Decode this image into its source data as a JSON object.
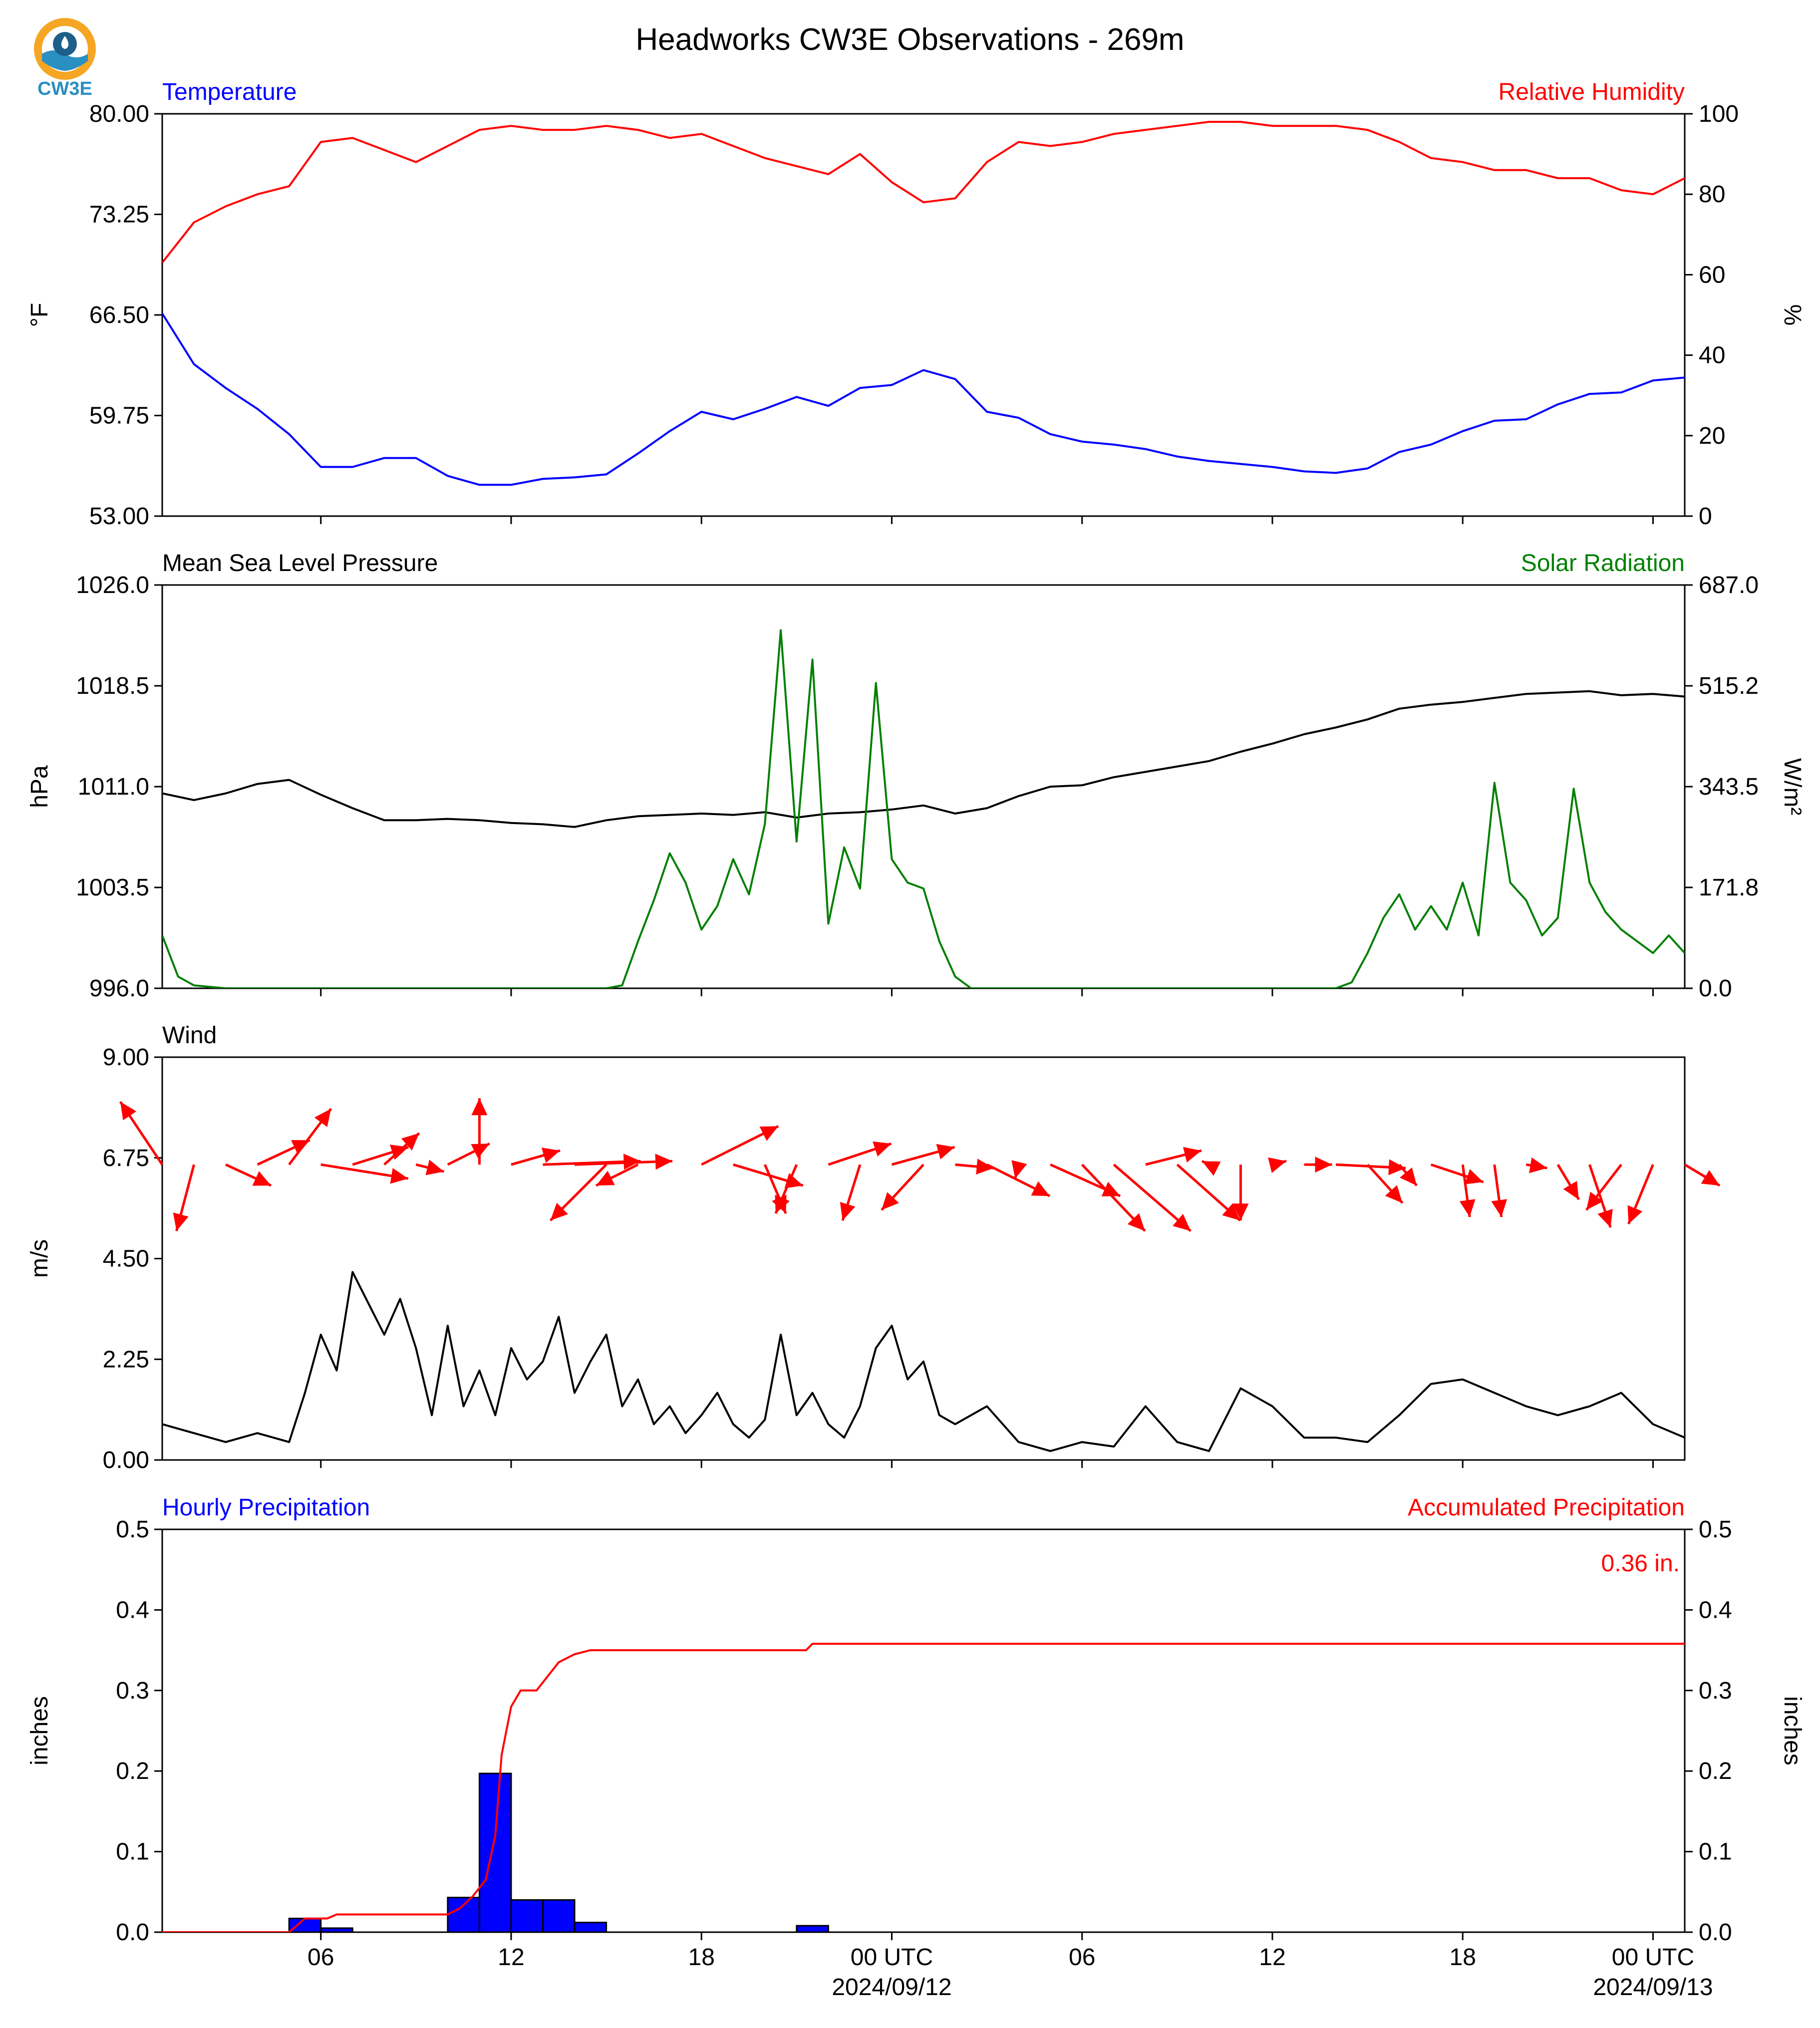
{
  "title": "Headworks CW3E Observations - 269m",
  "logo": {
    "text": "CW3E",
    "colors": [
      "#f5a623",
      "#2a8fc1",
      "#1e5f8a"
    ]
  },
  "colors": {
    "temperature": "#0000ff",
    "humidity": "#ff0000",
    "pressure": "#000000",
    "solar": "#008000",
    "wind_speed": "#000000",
    "wind_arrow": "#ff0000",
    "hourly_bar": "#0000ff",
    "accum_line": "#ff0000"
  },
  "time_axis": {
    "start": "2024-09-11T01:00Z",
    "end": "2024-09-13T01:00Z",
    "tick_labels": [
      "06",
      "12",
      "18",
      "00 UTC",
      "06",
      "12",
      "18",
      "00 UTC"
    ],
    "tick_hours": [
      6,
      12,
      18,
      24,
      30,
      36,
      42,
      48
    ],
    "date_labels": [
      "2024/09/12",
      "2024/09/13"
    ]
  },
  "chart_data": [
    {
      "type": "line",
      "panel": "temperature_humidity",
      "left_label": "Temperature",
      "right_label": "Relative Humidity",
      "ylabel": "°F",
      "ylabel_right": "%",
      "ylim": [
        53.0,
        80.0
      ],
      "ylim_right": [
        0,
        100
      ],
      "yticks": [
        "53.00",
        "59.75",
        "66.50",
        "73.25",
        "80.00"
      ],
      "yticks_right": [
        "0",
        "20",
        "40",
        "60",
        "80",
        "100"
      ],
      "series": [
        {
          "name": "Temperature",
          "axis": "left",
          "x": [
            1,
            2,
            3,
            4,
            5,
            6,
            7,
            8,
            9,
            10,
            11,
            12,
            13,
            14,
            15,
            16,
            17,
            18,
            19,
            20,
            21,
            22,
            23,
            24,
            25,
            26,
            27,
            28,
            29,
            30,
            31,
            32,
            33,
            34,
            35,
            36,
            37,
            38,
            39,
            40,
            41,
            42,
            43,
            44,
            45,
            46,
            47,
            48,
            49
          ],
          "y": [
            66.6,
            63.2,
            61.6,
            60.2,
            58.5,
            56.3,
            56.3,
            56.9,
            56.9,
            55.7,
            55.1,
            55.1,
            55.5,
            55.6,
            55.8,
            57.2,
            58.7,
            60.0,
            59.5,
            60.2,
            61.0,
            60.4,
            61.6,
            61.8,
            62.8,
            62.2,
            60.0,
            59.6,
            58.5,
            58.0,
            57.8,
            57.5,
            57.0,
            56.7,
            56.5,
            56.3,
            56.0,
            55.9,
            56.2,
            57.3,
            57.8,
            58.7,
            59.4,
            59.5,
            60.5,
            61.2,
            61.3,
            62.1,
            62.3
          ]
        },
        {
          "name": "Relative Humidity",
          "axis": "right",
          "x": [
            1,
            2,
            3,
            4,
            5,
            6,
            7,
            8,
            9,
            10,
            11,
            12,
            13,
            14,
            15,
            16,
            17,
            18,
            19,
            20,
            21,
            22,
            23,
            24,
            25,
            26,
            27,
            28,
            29,
            30,
            31,
            32,
            33,
            34,
            35,
            36,
            37,
            38,
            39,
            40,
            41,
            42,
            43,
            44,
            45,
            46,
            47,
            48,
            49
          ],
          "y": [
            63,
            73,
            77,
            80,
            82,
            93,
            94,
            91,
            88,
            92,
            96,
            97,
            96,
            96,
            97,
            96,
            94,
            95,
            92,
            89,
            87,
            85,
            90,
            83,
            78,
            79,
            88,
            93,
            92,
            93,
            95,
            96,
            97,
            98,
            98,
            97,
            97,
            97,
            96,
            93,
            89,
            88,
            86,
            86,
            84,
            84,
            81,
            80,
            84
          ]
        }
      ]
    },
    {
      "type": "line",
      "panel": "pressure_solar",
      "left_label": "Mean Sea Level Pressure",
      "right_label": "Solar Radiation",
      "ylabel": "hPa",
      "ylabel_right": "W/m²",
      "ylim": [
        996.0,
        1026.0
      ],
      "ylim_right": [
        0.0,
        687.0
      ],
      "yticks": [
        "996.0",
        "1003.5",
        "1011.0",
        "1018.5",
        "1026.0"
      ],
      "yticks_right": [
        "0.0",
        "171.8",
        "343.5",
        "515.2",
        "687.0"
      ],
      "series": [
        {
          "name": "Mean Sea Level Pressure",
          "axis": "left",
          "x": [
            1,
            2,
            3,
            4,
            5,
            6,
            7,
            8,
            9,
            10,
            11,
            12,
            13,
            14,
            15,
            16,
            17,
            18,
            19,
            20,
            21,
            22,
            23,
            24,
            25,
            26,
            27,
            28,
            29,
            30,
            31,
            32,
            33,
            34,
            35,
            36,
            37,
            38,
            39,
            40,
            41,
            42,
            43,
            44,
            45,
            46,
            47,
            48,
            49
          ],
          "y": [
            1010.5,
            1010.0,
            1010.5,
            1011.2,
            1011.5,
            1010.4,
            1009.4,
            1008.5,
            1008.5,
            1008.6,
            1008.5,
            1008.3,
            1008.2,
            1008.0,
            1008.5,
            1008.8,
            1008.9,
            1009.0,
            1008.9,
            1009.1,
            1008.7,
            1009.0,
            1009.1,
            1009.3,
            1009.6,
            1009.0,
            1009.4,
            1010.3,
            1011.0,
            1011.1,
            1011.7,
            1012.1,
            1012.5,
            1012.9,
            1013.6,
            1014.2,
            1014.9,
            1015.4,
            1016.0,
            1016.8,
            1017.1,
            1017.3,
            1017.6,
            1017.9,
            1018.0,
            1018.1,
            1017.8,
            1017.9,
            1017.7
          ]
        },
        {
          "name": "Solar Radiation",
          "axis": "right",
          "x": [
            1,
            1.5,
            2,
            3,
            4,
            5,
            6,
            7,
            8,
            9,
            10,
            13,
            14,
            15,
            15.5,
            16,
            16.5,
            17,
            17.5,
            18,
            18.5,
            19,
            19.5,
            20,
            20.5,
            21,
            21.5,
            22,
            22.5,
            23,
            23.5,
            24,
            24.5,
            25,
            25.5,
            26,
            26.5,
            27,
            38,
            38.5,
            39,
            39.5,
            40,
            40.5,
            41,
            41.5,
            42,
            42.5,
            43,
            43.5,
            44,
            44.5,
            45,
            45.5,
            46,
            46.5,
            47,
            47.5,
            48,
            48.5,
            49
          ],
          "y": [
            90,
            20,
            5,
            0,
            0,
            0,
            0,
            0,
            0,
            0,
            0,
            0,
            0,
            0,
            5,
            80,
            150,
            230,
            180,
            100,
            140,
            220,
            160,
            280,
            610,
            250,
            560,
            110,
            240,
            170,
            520,
            220,
            180,
            170,
            80,
            20,
            0,
            0,
            0,
            10,
            60,
            120,
            160,
            100,
            140,
            100,
            180,
            90,
            350,
            180,
            150,
            90,
            120,
            340,
            180,
            130,
            100,
            80,
            60,
            90,
            60
          ]
        }
      ]
    },
    {
      "type": "line",
      "panel": "wind",
      "left_label": "Wind",
      "ylabel": "m/s",
      "ylim": [
        0.0,
        9.0
      ],
      "yticks": [
        "0.00",
        "2.25",
        "4.50",
        "6.75",
        "9.00"
      ],
      "series": [
        {
          "name": "Wind",
          "axis": "left",
          "x": [
            1,
            2,
            3,
            4,
            5,
            5.5,
            6,
            6.5,
            7,
            7.5,
            8,
            8.5,
            9,
            9.5,
            10,
            10.5,
            11,
            11.5,
            12,
            12.5,
            13,
            13.5,
            14,
            14.5,
            15,
            15.5,
            16,
            16.5,
            17,
            17.5,
            18,
            18.5,
            19,
            19.5,
            20,
            20.5,
            21,
            21.5,
            22,
            22.5,
            23,
            23.5,
            24,
            24.5,
            25,
            25.5,
            26,
            27,
            28,
            29,
            30,
            31,
            32,
            33,
            34,
            35,
            36,
            37,
            38,
            39,
            40,
            41,
            42,
            43,
            44,
            45,
            46,
            47,
            48,
            49
          ],
          "y": [
            0.8,
            0.6,
            0.4,
            0.6,
            0.4,
            1.5,
            2.8,
            2.0,
            4.2,
            3.5,
            2.8,
            3.6,
            2.5,
            1.0,
            3.0,
            1.2,
            2.0,
            1.0,
            2.5,
            1.8,
            2.2,
            3.2,
            1.5,
            2.2,
            2.8,
            1.2,
            1.8,
            0.8,
            1.2,
            0.6,
            1.0,
            1.5,
            0.8,
            0.5,
            0.9,
            2.8,
            1.0,
            1.5,
            0.8,
            0.5,
            1.2,
            2.5,
            3.0,
            1.8,
            2.2,
            1.0,
            0.8,
            1.2,
            0.4,
            0.2,
            0.4,
            0.3,
            1.2,
            0.4,
            0.2,
            1.6,
            1.2,
            0.5,
            0.5,
            0.4,
            1.0,
            1.7,
            1.8,
            1.5,
            1.2,
            1.0,
            1.2,
            1.5,
            0.8,
            0.5
          ]
        }
      ],
      "arrows": {
        "hours": [
          1,
          2,
          3,
          4,
          5,
          6,
          7,
          8,
          9,
          10,
          11,
          12,
          13,
          14,
          15,
          16,
          18,
          19,
          20,
          21,
          22,
          23,
          24,
          25,
          26,
          27,
          28,
          29,
          30,
          31,
          32,
          33,
          34,
          35,
          36,
          37,
          38,
          39,
          40,
          41,
          42,
          43,
          44,
          45,
          46,
          47,
          48,
          49
        ],
        "u": [
          -1.2,
          -0.5,
          1.3,
          1.5,
          1.2,
          2.5,
          1.6,
          1.0,
          0.8,
          1.2,
          0.0,
          1.4,
          2.8,
          2.8,
          -1.6,
          -1.2,
          2.2,
          2.0,
          0.6,
          -0.6,
          1.8,
          -0.5,
          1.8,
          -1.2,
          1.1,
          1.8,
          -0.1,
          2.0,
          1.8,
          2.2,
          1.6,
          1.8,
          -0.2,
          0.0,
          0.4,
          0.8,
          2.0,
          1.0,
          0.5,
          1.5,
          0.2,
          0.2,
          0.6,
          0.6,
          0.6,
          -1.0,
          -0.7,
          1.0
        ],
        "v": [
          1.8,
          -1.9,
          -0.6,
          0.7,
          1.6,
          -0.4,
          0.5,
          0.9,
          -0.2,
          0.6,
          1.9,
          0.4,
          0.1,
          0.1,
          -1.6,
          -0.6,
          1.1,
          -0.6,
          -1.4,
          -1.4,
          0.6,
          -1.6,
          0.5,
          -1.3,
          -0.1,
          -0.9,
          -0.4,
          -0.9,
          -1.9,
          -1.9,
          0.4,
          -1.6,
          0.1,
          -1.6,
          0.1,
          0.0,
          -0.1,
          -1.1,
          -0.6,
          -0.5,
          -1.5,
          -1.5,
          -0.1,
          -1.0,
          -1.8,
          -1.3,
          -1.7,
          -0.6
        ]
      }
    },
    {
      "type": "bar",
      "panel": "precipitation",
      "left_label": "Hourly Precipitation",
      "right_label": "Accumulated Precipitation",
      "annotation": "0.36 in.",
      "ylabel": "inches",
      "ylabel_right": "inches",
      "ylim": [
        0.0,
        0.5
      ],
      "ylim_right": [
        0.0,
        0.5
      ],
      "yticks": [
        "0.0",
        "0.1",
        "0.2",
        "0.3",
        "0.4",
        "0.5"
      ],
      "yticks_right": [
        "0.0",
        "0.1",
        "0.2",
        "0.3",
        "0.4",
        "0.5"
      ],
      "series": [
        {
          "name": "Hourly Precipitation",
          "axis": "left",
          "x": [
            5.5,
            6.5,
            10.5,
            11.5,
            12.5,
            13.5,
            14.5,
            21.5
          ],
          "values": [
            0.017,
            0.005,
            0.043,
            0.197,
            0.04,
            0.04,
            0.012,
            0.008
          ]
        },
        {
          "name": "Accumulated Precipitation",
          "axis": "right",
          "x": [
            1,
            5,
            5.5,
            6.2,
            6.5,
            10,
            10.4,
            10.8,
            11.2,
            11.5,
            11.7,
            11.9,
            12.0,
            12.3,
            12.5,
            12.8,
            13.2,
            13.5,
            14.0,
            14.5,
            21.3,
            21.5,
            49
          ],
          "y": [
            0.0,
            0.0,
            0.017,
            0.017,
            0.022,
            0.022,
            0.03,
            0.045,
            0.065,
            0.12,
            0.22,
            0.26,
            0.28,
            0.3,
            0.3,
            0.3,
            0.32,
            0.335,
            0.345,
            0.35,
            0.35,
            0.358,
            0.358
          ]
        }
      ]
    }
  ]
}
